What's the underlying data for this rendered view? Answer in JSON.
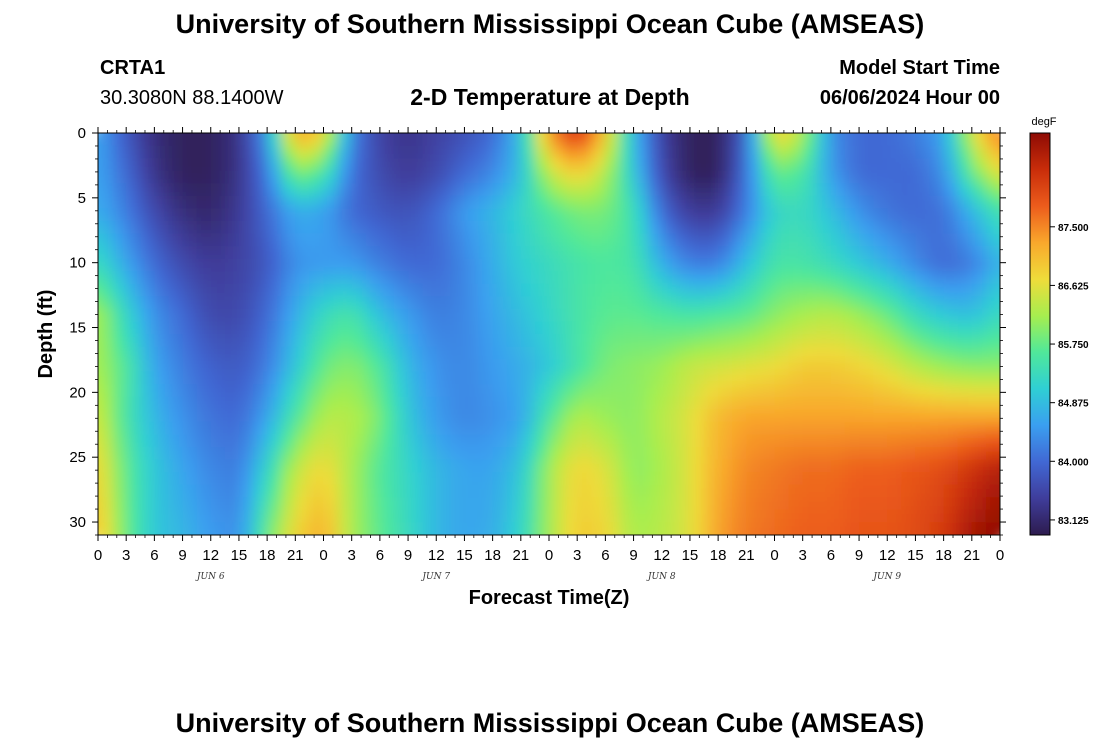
{
  "header": {
    "title": "University of Southern Mississippi Ocean Cube (AMSEAS)",
    "station": "CRTA1",
    "coordinates": "30.3080N  88.1400W",
    "subtitle": "2-D Temperature at Depth",
    "model_start_label": "Model Start Time",
    "model_start_value": "06/06/2024 Hour 00"
  },
  "footer": {
    "title": "University of Southern Mississippi Ocean Cube (AMSEAS)"
  },
  "chart_data": {
    "type": "heatmap",
    "title": "2-D Temperature at Depth",
    "xlabel": "Forecast Time(Z)",
    "ylabel": "Depth (ft)",
    "x_hours_range": [
      0,
      96
    ],
    "x_tick_step_hours": 3,
    "x_tick_labels": [
      "0",
      "3",
      "6",
      "9",
      "12",
      "15",
      "18",
      "21",
      "0",
      "3",
      "6",
      "9",
      "12",
      "15",
      "18",
      "21",
      "0",
      "3",
      "6",
      "9",
      "12",
      "15",
      "18",
      "21",
      "0",
      "3",
      "6",
      "9",
      "12",
      "15",
      "18",
      "21",
      "0"
    ],
    "day_labels": [
      {
        "hour": 12,
        "label": "JUN 6"
      },
      {
        "hour": 36,
        "label": "JUN 7"
      },
      {
        "hour": 60,
        "label": "JUN 8"
      },
      {
        "hour": 84,
        "label": "JUN 9"
      }
    ],
    "ylim": [
      31,
      0
    ],
    "y_ticks": [
      0,
      5,
      10,
      15,
      20,
      25,
      30
    ],
    "y_tick_labels": [
      "0",
      "5",
      "10",
      "15",
      "20",
      "25",
      "30"
    ],
    "colorbar": {
      "unit": "degF",
      "range": [
        82.9,
        88.9
      ],
      "ticks": [
        87.5,
        86.625,
        85.75,
        84.875,
        84.0,
        83.125
      ],
      "tick_labels": [
        "87.500",
        "86.625",
        "85.750",
        "84.875",
        "84.000",
        "83.125"
      ],
      "colors": [
        "#2d1b4e",
        "#3f3d9b",
        "#4168d4",
        "#3a9ff0",
        "#2fcfd4",
        "#50e89a",
        "#a6ee4f",
        "#eedc3a",
        "#f9a82c",
        "#ec5c1c",
        "#c92d0a",
        "#8e0b04"
      ]
    },
    "depth_levels_ft": [
      0,
      3,
      6,
      10,
      14,
      18,
      22,
      26,
      31
    ],
    "time_hours": [
      0,
      3,
      6,
      9,
      12,
      15,
      18,
      21,
      24,
      27,
      30,
      33,
      36,
      39,
      42,
      45,
      48,
      51,
      54,
      57,
      60,
      63,
      66,
      69,
      72,
      75,
      78,
      81,
      84,
      87,
      90,
      93,
      96
    ],
    "temperature_degF": [
      [
        84.6,
        83.8,
        83.2,
        83.0,
        83.0,
        83.3,
        84.5,
        87.3,
        86.9,
        84.3,
        83.5,
        83.3,
        83.5,
        83.7,
        84.0,
        84.9,
        87.4,
        88.3,
        87.0,
        84.8,
        83.5,
        83.0,
        83.0,
        84.0,
        86.9,
        86.3,
        84.4,
        84.0,
        84.0,
        84.2,
        84.6,
        86.5,
        87.7
      ],
      [
        84.6,
        84.0,
        83.3,
        83.0,
        83.0,
        83.3,
        84.2,
        86.0,
        85.6,
        84.1,
        83.6,
        83.4,
        83.6,
        84.0,
        84.3,
        84.9,
        86.4,
        86.9,
        86.3,
        85.0,
        83.6,
        83.0,
        83.0,
        84.1,
        85.8,
        85.6,
        84.5,
        84.0,
        84.0,
        84.0,
        84.4,
        85.8,
        86.7
      ],
      [
        84.7,
        84.2,
        83.6,
        83.2,
        83.1,
        83.4,
        84.0,
        84.7,
        84.6,
        84.0,
        83.8,
        83.7,
        84.0,
        84.5,
        84.8,
        85.2,
        85.6,
        85.9,
        85.9,
        85.4,
        84.0,
        83.4,
        83.4,
        84.2,
        85.2,
        85.3,
        84.9,
        84.4,
        84.1,
        84.0,
        84.1,
        84.8,
        85.5
      ],
      [
        85.3,
        84.6,
        84.0,
        83.6,
        83.4,
        83.5,
        83.8,
        84.4,
        84.5,
        84.5,
        84.2,
        84.0,
        84.0,
        84.3,
        84.7,
        85.1,
        85.3,
        85.5,
        85.6,
        85.5,
        84.7,
        84.2,
        84.2,
        84.9,
        85.5,
        85.5,
        85.3,
        85.0,
        84.7,
        84.3,
        84.0,
        84.2,
        84.8
      ],
      [
        86.2,
        85.2,
        84.4,
        84.0,
        83.6,
        83.6,
        84.0,
        84.7,
        85.3,
        85.5,
        84.9,
        84.5,
        84.2,
        84.3,
        84.6,
        84.9,
        85.2,
        85.5,
        85.7,
        85.7,
        85.6,
        85.5,
        85.6,
        85.7,
        86.0,
        86.2,
        86.3,
        86.1,
        85.8,
        85.3,
        85.0,
        84.9,
        85.3
      ],
      [
        86.2,
        85.6,
        84.6,
        84.2,
        83.9,
        83.8,
        84.2,
        85.0,
        85.8,
        86.0,
        85.6,
        84.8,
        84.4,
        84.3,
        84.5,
        84.7,
        85.0,
        85.5,
        85.9,
        86.0,
        86.1,
        86.4,
        86.5,
        86.6,
        86.7,
        86.9,
        86.9,
        86.8,
        86.6,
        86.3,
        86.1,
        86.0,
        86.0
      ],
      [
        86.5,
        85.5,
        84.8,
        84.4,
        84.1,
        84.0,
        84.6,
        85.6,
        86.3,
        86.3,
        85.9,
        85.0,
        84.5,
        84.3,
        84.4,
        84.6,
        85.6,
        86.3,
        86.1,
        86.0,
        86.3,
        86.6,
        87.1,
        87.3,
        87.3,
        87.3,
        87.3,
        87.3,
        87.3,
        87.3,
        87.3,
        87.3,
        87.3
      ],
      [
        86.8,
        85.7,
        85.0,
        84.6,
        84.3,
        84.2,
        85.2,
        86.4,
        86.8,
        86.2,
        85.6,
        85.2,
        84.8,
        84.6,
        84.6,
        85.0,
        86.2,
        86.8,
        86.6,
        86.0,
        86.2,
        86.6,
        87.2,
        87.5,
        87.6,
        87.7,
        87.7,
        87.8,
        87.8,
        87.9,
        88.0,
        88.3,
        88.6
      ],
      [
        87.0,
        85.8,
        85.0,
        84.8,
        84.5,
        84.4,
        85.8,
        86.8,
        87.2,
        86.2,
        85.7,
        85.3,
        84.8,
        84.6,
        84.7,
        85.2,
        86.2,
        86.9,
        86.8,
        86.2,
        86.3,
        86.6,
        87.3,
        87.6,
        87.7,
        87.8,
        87.8,
        87.9,
        87.9,
        88.0,
        88.2,
        88.7,
        88.9
      ]
    ]
  }
}
